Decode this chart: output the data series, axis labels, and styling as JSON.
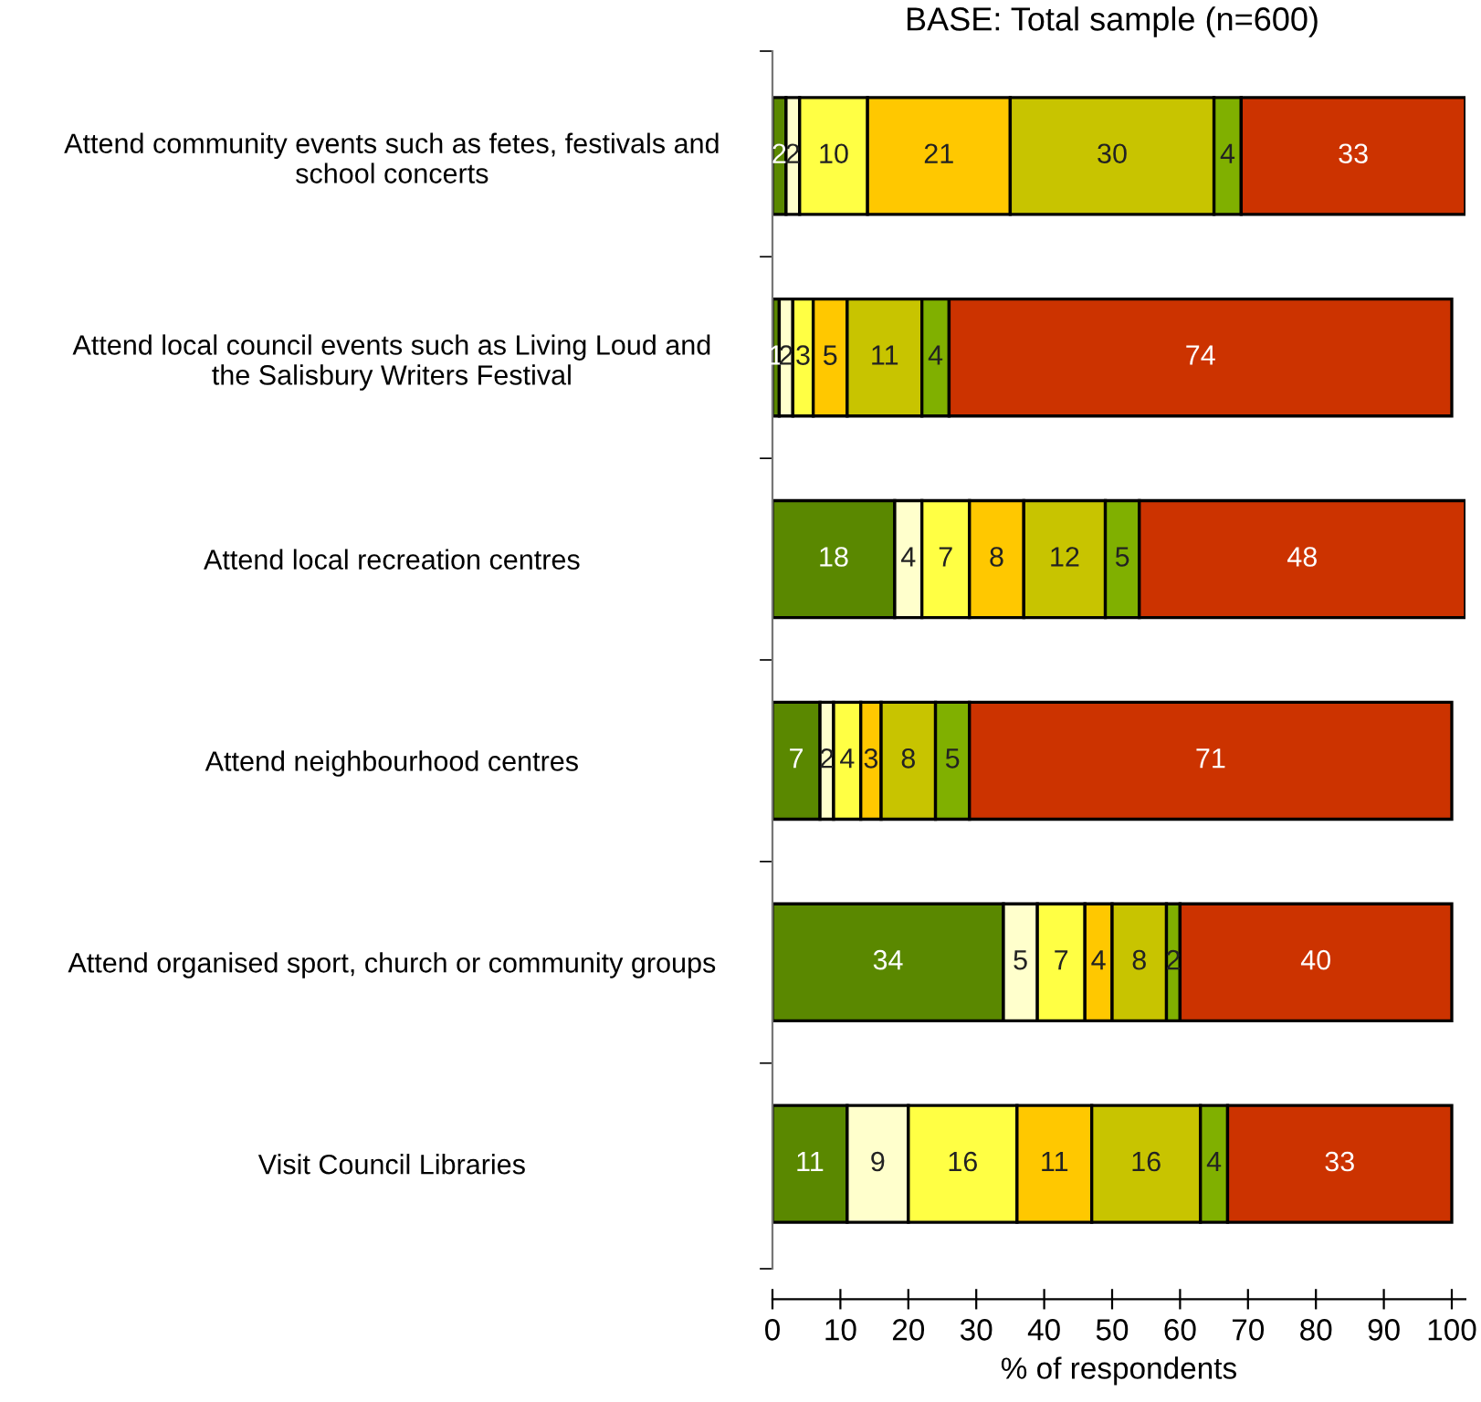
{
  "chart_data": {
    "type": "bar",
    "orientation": "horizontal",
    "stacked": true,
    "title": "BASE: Total sample (n=600)",
    "xlabel": "% of respondents",
    "categories": [
      "Attend community events such as fetes, festivals and\nschool concerts",
      "Attend local council events such as Living Loud and\nthe Salisbury Writers Festival",
      "Attend local recreation centres",
      "Attend neighbourhood centres",
      "Attend organised sport, church or community groups",
      "Visit Council Libraries"
    ],
    "series": [
      {
        "color": "#5a8800",
        "values": [
          2,
          1,
          18,
          7,
          34,
          11
        ]
      },
      {
        "color": "#ffffcc",
        "values": [
          2,
          2,
          4,
          2,
          5,
          9
        ]
      },
      {
        "color": "#ffff44",
        "values": [
          10,
          3,
          7,
          4,
          7,
          16
        ]
      },
      {
        "color": "#ffc800",
        "values": [
          21,
          5,
          8,
          3,
          4,
          11
        ]
      },
      {
        "color": "#c8c400",
        "values": [
          30,
          11,
          12,
          8,
          8,
          16
        ]
      },
      {
        "color": "#80b000",
        "values": [
          4,
          4,
          5,
          5,
          2,
          4
        ]
      },
      {
        "color": "#cc3300",
        "values": [
          33,
          74,
          48,
          71,
          40,
          33
        ]
      }
    ],
    "data_labels": true,
    "xlim": [
      0,
      102
    ],
    "xticks": [
      0,
      10,
      20,
      30,
      40,
      50,
      60,
      70,
      80,
      90,
      100
    ],
    "grid": false,
    "legend": false
  }
}
